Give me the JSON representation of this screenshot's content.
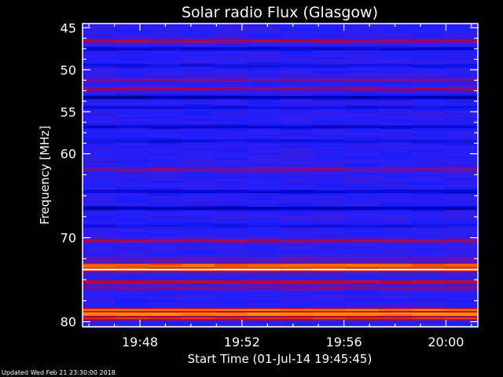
{
  "chart_data": {
    "type": "heatmap",
    "title": "Solar radio Flux (Glasgow)",
    "xlabel": "Start Time (01-Jul-14 19:45:45)",
    "ylabel": "Frequency [MHz]",
    "x_tick_labels": [
      "19:48",
      "19:52",
      "19:56",
      "20:00"
    ],
    "x_ticks_min": [
      48,
      52,
      56,
      60
    ],
    "xlim_minutes_after_1900": [
      45.75,
      61.25
    ],
    "y_tick_labels": [
      "45",
      "50",
      "55",
      "60",
      "70",
      "80"
    ],
    "y_ticks": [
      45,
      50,
      55,
      60,
      70,
      80
    ],
    "ylim": [
      44.5,
      80.6
    ],
    "y_direction": "increasing-downward",
    "colormap": [
      "#000030",
      "#0000c0",
      "#2020ff",
      "#7010a0",
      "#d00010",
      "#ff6000",
      "#ffc000",
      "#ffffe0"
    ],
    "background_level": 0.3,
    "bands": [
      {
        "freq": 46.6,
        "level": 0.55
      },
      {
        "freq": 47.5,
        "level": 0.15
      },
      {
        "freq": 49.5,
        "level": 0.2
      },
      {
        "freq": 51.2,
        "level": 0.45
      },
      {
        "freq": 52.3,
        "level": 0.5
      },
      {
        "freq": 53.3,
        "level": 0.1
      },
      {
        "freq": 54.5,
        "level": 0.2
      },
      {
        "freq": 56.8,
        "level": 0.15
      },
      {
        "freq": 58.5,
        "level": 0.2
      },
      {
        "freq": 61.9,
        "level": 0.45
      },
      {
        "freq": 64.5,
        "level": 0.15
      },
      {
        "freq": 66.5,
        "level": 0.1
      },
      {
        "freq": 68.6,
        "level": 0.22
      },
      {
        "freq": 69.5,
        "level": 0.3
      },
      {
        "freq": 70.4,
        "level": 0.55
      },
      {
        "freq": 72.6,
        "level": 0.42
      },
      {
        "freq": 73.3,
        "level": 0.8
      },
      {
        "freq": 73.8,
        "level": 1.0
      },
      {
        "freq": 74.3,
        "level": 0.35
      },
      {
        "freq": 75.3,
        "level": 0.62
      },
      {
        "freq": 76.0,
        "level": 0.45
      },
      {
        "freq": 78.6,
        "level": 0.78
      },
      {
        "freq": 79.1,
        "level": 0.88
      },
      {
        "freq": 79.6,
        "level": 0.65
      }
    ]
  },
  "footer": {
    "updated": "Updated Wed Feb 21 23:30:00 2018"
  }
}
